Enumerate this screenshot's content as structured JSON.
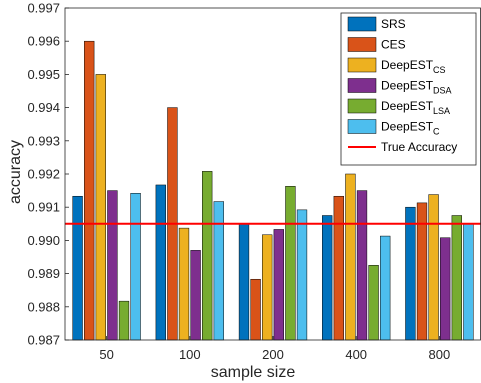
{
  "chart_data": {
    "type": "bar",
    "xlabel": "sample size",
    "ylabel": "accuracy",
    "categories": [
      "50",
      "100",
      "200",
      "400",
      "800"
    ],
    "ylim": [
      0.987,
      0.997
    ],
    "yticks": [
      "0.987",
      "0.988",
      "0.989",
      "0.990",
      "0.991",
      "0.992",
      "0.993",
      "0.994",
      "0.995",
      "0.996",
      "0.997"
    ],
    "grid": false,
    "legend_position": "top-right",
    "series": [
      {
        "name": "SRS",
        "label_main": "SRS",
        "label_sub": "",
        "color": "#0072BD",
        "values": [
          0.99133,
          0.99167,
          0.9905,
          0.99075,
          0.991
        ]
      },
      {
        "name": "CES",
        "label_main": "CES",
        "label_sub": "",
        "color": "#D95319",
        "values": [
          0.996,
          0.994,
          0.98883,
          0.99133,
          0.99113
        ]
      },
      {
        "name": "DeepEST_CS",
        "label_main": "DeepEST",
        "label_sub": "CS",
        "color": "#EDB120",
        "values": [
          0.995,
          0.99037,
          0.99017,
          0.992,
          0.99138
        ]
      },
      {
        "name": "DeepEST_DSA",
        "label_main": "DeepEST",
        "label_sub": "DSA",
        "color": "#7E2F8E",
        "values": [
          0.9915,
          0.9897,
          0.99033,
          0.9915,
          0.99008
        ]
      },
      {
        "name": "DeepEST_LSA",
        "label_main": "DeepEST",
        "label_sub": "LSA",
        "color": "#77AC30",
        "values": [
          0.98817,
          0.99208,
          0.99163,
          0.98925,
          0.99075
        ]
      },
      {
        "name": "DeepEST_C",
        "label_main": "DeepEST",
        "label_sub": "C",
        "color": "#4DBEEE",
        "values": [
          0.99142,
          0.99117,
          0.99092,
          0.99013,
          0.9905
        ]
      }
    ],
    "reference_line": {
      "name": "True Accuracy",
      "value": 0.9905,
      "color": "#FF0000"
    }
  }
}
